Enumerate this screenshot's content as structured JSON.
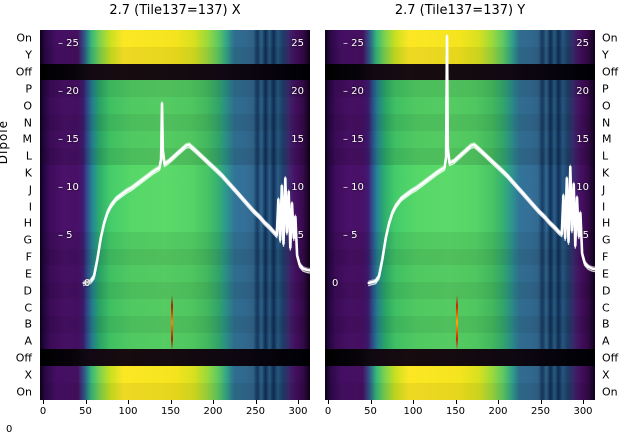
{
  "titles": {
    "left": "2.7 (Tile137=137) X",
    "right": "2.7 (Tile137=137) Y"
  },
  "ylabel": "Dipole",
  "corner_zero": "0",
  "dipole_labels": [
    "On",
    "Y",
    "Off",
    "P",
    "O",
    "N",
    "M",
    "L",
    "K",
    "J",
    "I",
    "H",
    "G",
    "F",
    "E",
    "D",
    "C",
    "B",
    "A",
    "Off",
    "X",
    "On"
  ],
  "row_types": [
    "bright",
    "bright",
    "off",
    "main",
    "main",
    "main",
    "main",
    "main",
    "main",
    "main",
    "main",
    "main",
    "main",
    "main",
    "main",
    "main",
    "main",
    "main",
    "main",
    "off",
    "bright",
    "bright"
  ],
  "inner_yticks": [
    25,
    20,
    15,
    10,
    5
  ],
  "zero_label": "0",
  "xticks": [
    0,
    50,
    100,
    150,
    200,
    250,
    300
  ],
  "chart_data": {
    "type": "heatmap",
    "subtype": "two-panel viridis waterfall with overlaid white line profiles",
    "title_left": "2.7 (Tile137=137) X",
    "title_right": "2.7 (Tile137=137) Y",
    "ylabel": "Dipole",
    "row_categories": [
      "On",
      "Y",
      "Off",
      "P",
      "O",
      "N",
      "M",
      "L",
      "K",
      "J",
      "I",
      "H",
      "G",
      "F",
      "E",
      "D",
      "C",
      "B",
      "A",
      "Off",
      "X",
      "On"
    ],
    "x_axis": {
      "range": [
        0,
        315
      ],
      "ticks": [
        0,
        50,
        100,
        150,
        200,
        250,
        300
      ]
    },
    "value_axis": {
      "ticks": [
        0,
        5,
        10,
        15,
        20,
        25
      ],
      "zero_label": "0"
    },
    "legend": "none",
    "grid": false,
    "panels": [
      {
        "name": "X",
        "curve": [
          [
            48,
            0.1
          ],
          [
            56,
            0.3
          ],
          [
            60,
            0.8
          ],
          [
            64,
            2.6
          ],
          [
            68,
            4.8
          ],
          [
            72,
            6.4
          ],
          [
            76,
            7.5
          ],
          [
            80,
            8.2
          ],
          [
            86,
            8.9
          ],
          [
            92,
            9.3
          ],
          [
            98,
            9.7
          ],
          [
            104,
            10.0
          ],
          [
            110,
            10.4
          ],
          [
            116,
            10.8
          ],
          [
            122,
            11.2
          ],
          [
            128,
            11.6
          ],
          [
            133,
            11.9
          ],
          [
            137,
            12.1
          ],
          [
            139,
            13.0
          ],
          [
            140,
            18.8
          ],
          [
            141,
            14.0
          ],
          [
            143,
            12.5
          ],
          [
            148,
            12.8
          ],
          [
            153,
            13.2
          ],
          [
            158,
            13.6
          ],
          [
            163,
            14.0
          ],
          [
            168,
            14.4
          ],
          [
            172,
            14.5
          ],
          [
            176,
            14.2
          ],
          [
            181,
            13.8
          ],
          [
            187,
            13.3
          ],
          [
            193,
            12.8
          ],
          [
            199,
            12.3
          ],
          [
            205,
            11.8
          ],
          [
            211,
            11.3
          ],
          [
            217,
            10.7
          ],
          [
            223,
            10.1
          ],
          [
            229,
            9.5
          ],
          [
            235,
            8.9
          ],
          [
            241,
            8.3
          ],
          [
            248,
            7.6
          ],
          [
            255,
            7.0
          ],
          [
            261,
            6.4
          ],
          [
            267,
            5.9
          ],
          [
            272,
            5.4
          ],
          [
            275,
            5.1
          ],
          [
            277,
            8.8
          ],
          [
            279,
            4.6
          ],
          [
            281,
            10.2
          ],
          [
            283,
            4.2
          ],
          [
            285,
            11.0
          ],
          [
            287,
            5.4
          ],
          [
            289,
            9.6
          ],
          [
            291,
            3.8
          ],
          [
            293,
            8.4
          ],
          [
            295,
            4.8
          ],
          [
            297,
            7.0
          ],
          [
            299,
            3.0
          ],
          [
            302,
            2.0
          ],
          [
            306,
            1.6
          ],
          [
            311,
            1.45
          ],
          [
            315,
            1.4
          ]
        ],
        "spike": {
          "x": 140,
          "value": 18.8
        },
        "artifact": {
          "x": 152,
          "color_hot": "#ff8800",
          "color_cool": "#aa2200"
        }
      },
      {
        "name": "Y",
        "curve": [
          [
            48,
            0.1
          ],
          [
            56,
            0.3
          ],
          [
            60,
            0.8
          ],
          [
            64,
            2.6
          ],
          [
            68,
            4.8
          ],
          [
            72,
            6.4
          ],
          [
            76,
            7.5
          ],
          [
            80,
            8.2
          ],
          [
            86,
            8.9
          ],
          [
            92,
            9.3
          ],
          [
            98,
            9.7
          ],
          [
            104,
            10.0
          ],
          [
            110,
            10.4
          ],
          [
            116,
            10.8
          ],
          [
            122,
            11.2
          ],
          [
            128,
            11.6
          ],
          [
            133,
            11.9
          ],
          [
            137,
            12.1
          ],
          [
            139,
            13.2
          ],
          [
            140,
            25.8
          ],
          [
            141,
            14.2
          ],
          [
            143,
            12.6
          ],
          [
            148,
            12.8
          ],
          [
            153,
            13.2
          ],
          [
            158,
            13.6
          ],
          [
            163,
            14.0
          ],
          [
            168,
            14.4
          ],
          [
            172,
            14.5
          ],
          [
            176,
            14.2
          ],
          [
            181,
            13.8
          ],
          [
            187,
            13.3
          ],
          [
            193,
            12.8
          ],
          [
            199,
            12.3
          ],
          [
            205,
            11.8
          ],
          [
            211,
            11.3
          ],
          [
            217,
            10.7
          ],
          [
            223,
            10.1
          ],
          [
            229,
            9.5
          ],
          [
            235,
            8.9
          ],
          [
            241,
            8.3
          ],
          [
            248,
            7.6
          ],
          [
            255,
            7.0
          ],
          [
            261,
            6.4
          ],
          [
            267,
            5.9
          ],
          [
            272,
            5.4
          ],
          [
            275,
            5.2
          ],
          [
            277,
            9.2
          ],
          [
            279,
            4.8
          ],
          [
            281,
            11.0
          ],
          [
            283,
            4.4
          ],
          [
            285,
            12.2
          ],
          [
            287,
            5.6
          ],
          [
            289,
            10.4
          ],
          [
            291,
            4.0
          ],
          [
            293,
            9.0
          ],
          [
            295,
            5.0
          ],
          [
            297,
            7.4
          ],
          [
            299,
            3.2
          ],
          [
            302,
            2.2
          ],
          [
            306,
            1.8
          ],
          [
            311,
            1.6
          ],
          [
            315,
            1.55
          ]
        ],
        "spike": {
          "x": 140,
          "value": 25.8
        },
        "artifact": {
          "x": 152,
          "color_hot": "#ffaa00",
          "color_cool": "#cc2200"
        }
      }
    ],
    "colormap": "viridis",
    "line_color": "#ffffff"
  }
}
